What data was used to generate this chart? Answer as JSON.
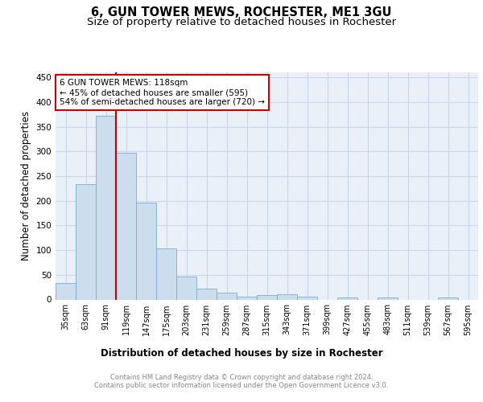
{
  "title": "6, GUN TOWER MEWS, ROCHESTER, ME1 3GU",
  "subtitle": "Size of property relative to detached houses in Rochester",
  "xlabel": "Distribution of detached houses by size in Rochester",
  "ylabel": "Number of detached properties",
  "bar_color": "#ccdded",
  "bar_edge_color": "#7aadd0",
  "grid_color": "#c8d8ea",
  "background_color": "#eaf0f8",
  "bin_labels": [
    "35sqm",
    "63sqm",
    "91sqm",
    "119sqm",
    "147sqm",
    "175sqm",
    "203sqm",
    "231sqm",
    "259sqm",
    "287sqm",
    "315sqm",
    "343sqm",
    "371sqm",
    "399sqm",
    "427sqm",
    "455sqm",
    "483sqm",
    "511sqm",
    "539sqm",
    "567sqm",
    "595sqm"
  ],
  "bar_heights": [
    33,
    234,
    372,
    297,
    197,
    104,
    47,
    22,
    14,
    5,
    9,
    10,
    5,
    0,
    4,
    0,
    4,
    0,
    0,
    4,
    0
  ],
  "annotation_text": "6 GUN TOWER MEWS: 118sqm\n← 45% of detached houses are smaller (595)\n54% of semi-detached houses are larger (720) →",
  "annotation_box_color": "#ffffff",
  "annotation_box_edge": "#cc0000",
  "red_line_color": "#cc0000",
  "ylim": [
    0,
    460
  ],
  "yticks": [
    0,
    50,
    100,
    150,
    200,
    250,
    300,
    350,
    400,
    450
  ],
  "footer_text": "Contains HM Land Registry data © Crown copyright and database right 2024.\nContains public sector information licensed under the Open Government Licence v3.0.",
  "title_fontsize": 10.5,
  "subtitle_fontsize": 9.5,
  "tick_fontsize": 7,
  "ylabel_fontsize": 8.5,
  "xlabel_fontsize": 8.5,
  "footer_fontsize": 6.0
}
